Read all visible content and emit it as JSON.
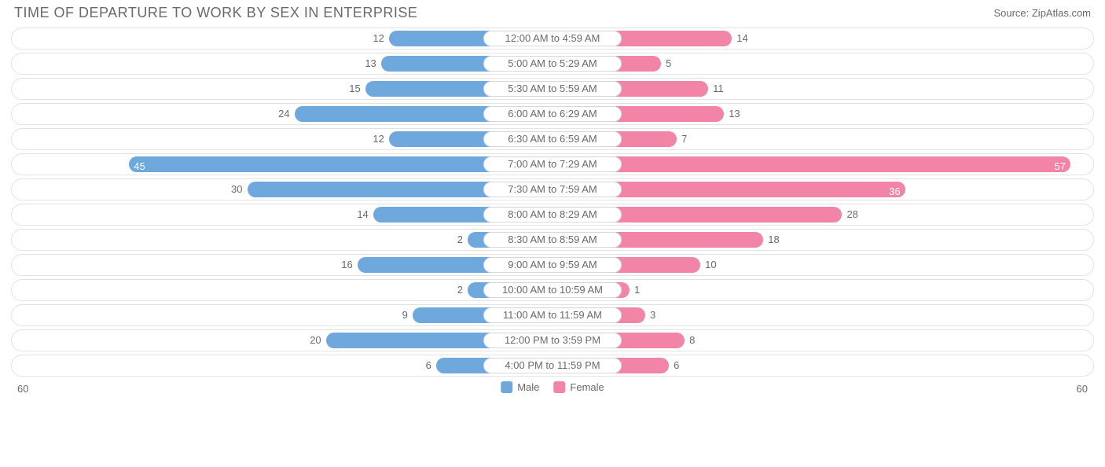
{
  "title": "TIME OF DEPARTURE TO WORK BY SEX IN ENTERPRISE",
  "source": "Source: ZipAtlas.com",
  "chart": {
    "type": "diverging-bar",
    "axis_max": 60,
    "axis_label_left": "60",
    "axis_label_right": "60",
    "male_color": "#6fa8dc",
    "female_color": "#f285a7",
    "track_border_color": "#e3e3e3",
    "background_color": "#ffffff",
    "text_color": "#6a6a6a",
    "value_fontsize": 13,
    "label_fontsize": 13,
    "title_fontsize": 18,
    "center_label_width": 176,
    "rows": [
      {
        "label": "12:00 AM to 4:59 AM",
        "male": 12,
        "female": 14
      },
      {
        "label": "5:00 AM to 5:29 AM",
        "male": 13,
        "female": 5
      },
      {
        "label": "5:30 AM to 5:59 AM",
        "male": 15,
        "female": 11
      },
      {
        "label": "6:00 AM to 6:29 AM",
        "male": 24,
        "female": 13
      },
      {
        "label": "6:30 AM to 6:59 AM",
        "male": 12,
        "female": 7
      },
      {
        "label": "7:00 AM to 7:29 AM",
        "male": 45,
        "female": 57
      },
      {
        "label": "7:30 AM to 7:59 AM",
        "male": 30,
        "female": 36
      },
      {
        "label": "8:00 AM to 8:29 AM",
        "male": 14,
        "female": 28
      },
      {
        "label": "8:30 AM to 8:59 AM",
        "male": 2,
        "female": 18
      },
      {
        "label": "9:00 AM to 9:59 AM",
        "male": 16,
        "female": 10
      },
      {
        "label": "10:00 AM to 10:59 AM",
        "male": 2,
        "female": 1
      },
      {
        "label": "11:00 AM to 11:59 AM",
        "male": 9,
        "female": 3
      },
      {
        "label": "12:00 PM to 3:59 PM",
        "male": 20,
        "female": 8
      },
      {
        "label": "4:00 PM to 11:59 PM",
        "male": 6,
        "female": 6
      }
    ],
    "legend": {
      "male_label": "Male",
      "female_label": "Female"
    }
  }
}
